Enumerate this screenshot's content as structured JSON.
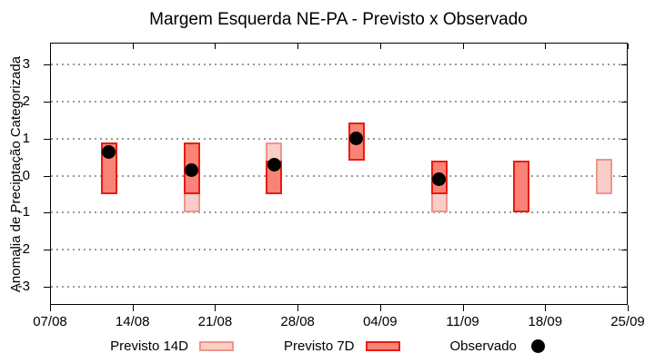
{
  "title": "Margem Esquerda NE-PA - Previsto x Observado",
  "y_axis": {
    "label": "Anomalia de Preciptação Categorizada",
    "ticks": [
      -3,
      -2,
      -1,
      0,
      1,
      2,
      3
    ]
  },
  "x_axis": {
    "ticks": [
      "07/08",
      "14/08",
      "21/08",
      "28/08",
      "04/09",
      "11/09",
      "18/09",
      "25/09"
    ]
  },
  "legend": {
    "items": [
      {
        "label": "Previsto 14D",
        "swatch": "light-pink-box"
      },
      {
        "label": "Previsto 7D",
        "swatch": "red-box"
      },
      {
        "label": "Observado",
        "swatch": "black-dot"
      }
    ]
  },
  "colors": {
    "p14_fill": "#f9cec8",
    "p14_border": "#f0958b",
    "p7_fill": "#fa8377",
    "p7_border": "#e91c0d",
    "observed": "#000000",
    "grid": "#9a9a9a",
    "axis": "#000000"
  },
  "chart_data": {
    "type": "bar",
    "subtype": "floating-range-bars-with-observed-points",
    "title": "Margem Esquerda NE-PA - Previsto x Observado",
    "xlabel": "",
    "ylabel": "Anomalia de Preciptação Categorizada",
    "ylim": [
      -3.5,
      3.6
    ],
    "yticks": [
      -3,
      -2,
      -1,
      0,
      1,
      2,
      3
    ],
    "x_tick_labels": [
      "07/08",
      "14/08",
      "21/08",
      "28/08",
      "04/09",
      "11/09",
      "18/09",
      "25/09"
    ],
    "grid": "horizontal dotted",
    "legend_position": "bottom",
    "categories": [
      "12/08",
      "19/08",
      "26/08",
      "02/09",
      "09/09",
      "16/09",
      "23/09"
    ],
    "series": [
      {
        "name": "Previsto 14D",
        "style": "range-bar",
        "ranges": [
          {
            "date": "19/08",
            "low": -1.0,
            "high": 0.45
          },
          {
            "date": "26/08",
            "low": -0.5,
            "high": 0.9
          },
          {
            "date": "09/09",
            "low": -1.0,
            "high": 0.4
          },
          {
            "date": "23/09",
            "low": -0.5,
            "high": 0.45
          }
        ]
      },
      {
        "name": "Previsto 7D",
        "style": "range-bar",
        "ranges": [
          {
            "date": "12/08",
            "low": -0.5,
            "high": 0.9
          },
          {
            "date": "19/08",
            "low": -0.5,
            "high": 0.9
          },
          {
            "date": "26/08",
            "low": -0.5,
            "high": 0.4
          },
          {
            "date": "02/09",
            "low": 0.4,
            "high": 1.45
          },
          {
            "date": "09/09",
            "low": -0.5,
            "high": 0.4
          },
          {
            "date": "16/09",
            "low": -1.0,
            "high": 0.4
          }
        ]
      },
      {
        "name": "Observado",
        "style": "point",
        "points": [
          {
            "date": "12/08",
            "value": 0.65
          },
          {
            "date": "19/08",
            "value": 0.15
          },
          {
            "date": "26/08",
            "value": 0.3
          },
          {
            "date": "02/09",
            "value": 1.0
          },
          {
            "date": "09/09",
            "value": -0.1
          }
        ]
      }
    ]
  }
}
